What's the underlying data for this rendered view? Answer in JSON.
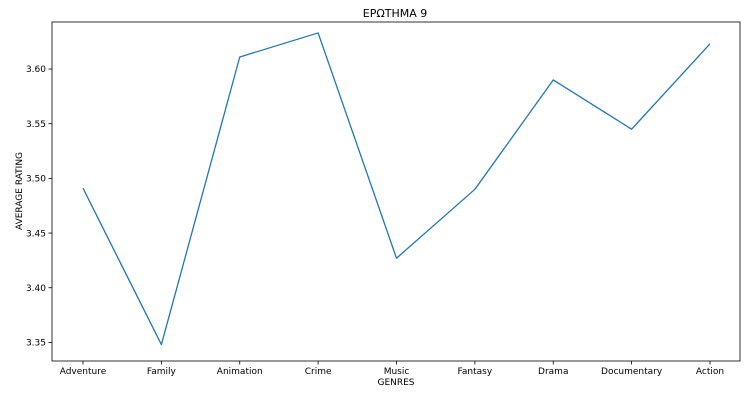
{
  "chart_data": {
    "type": "line",
    "title": "ΕΡΩΤΗΜΑ 9",
    "xlabel": "GENRES",
    "ylabel": "AVERAGE RATING",
    "categories": [
      "Adventure",
      "Family",
      "Animation",
      "Crime",
      "Music",
      "Fantasy",
      "Drama",
      "Documentary",
      "Action"
    ],
    "series": [
      {
        "values": [
          3.491,
          3.348,
          3.611,
          3.633,
          3.427,
          3.49,
          3.59,
          3.545,
          3.623
        ]
      }
    ],
    "ylim": [
      3.333,
      3.643
    ],
    "yticks": [
      3.35,
      3.4,
      3.45,
      3.5,
      3.55,
      3.6
    ],
    "ytick_labels": [
      "3.35",
      "3.40",
      "3.45",
      "3.50",
      "3.55",
      "3.60"
    ],
    "grid": false,
    "legend": "none",
    "line_color": "#1f77b4"
  }
}
